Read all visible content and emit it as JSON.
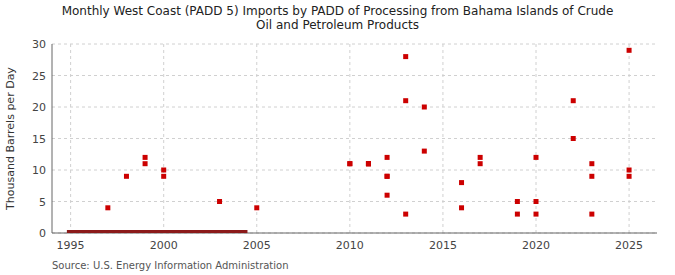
{
  "chart_data": {
    "type": "scatter",
    "title": "Monthly West Coast (PADD 5) Imports by PADD of Processing from Bahama Islands of Crude\nOil and Petroleum Products",
    "ylabel": "Thousand Barrels per Day",
    "source": "Source: U.S. Energy Information Administration",
    "xlim": [
      1994,
      2026.5
    ],
    "ylim": [
      0,
      30
    ],
    "xticks": [
      1995,
      2000,
      2005,
      2010,
      2015,
      2020,
      2025
    ],
    "yticks": [
      0,
      5,
      10,
      15,
      20,
      25,
      30
    ],
    "grid": true,
    "series": [
      {
        "type": "scatter",
        "color": "#cc0000",
        "marker": "square",
        "x": [
          1997,
          1998,
          1999,
          1999,
          2000,
          2000,
          2003,
          2005,
          2010,
          2010,
          2011,
          2011,
          2011,
          2011,
          2012,
          2012,
          2012,
          2012,
          2013,
          2013,
          2013,
          2014,
          2014,
          2016,
          2016,
          2017,
          2017,
          2019,
          2019,
          2020,
          2020,
          2020,
          2022,
          2022,
          2023,
          2023,
          2023,
          2025,
          2025,
          2025
        ],
        "values": [
          4,
          9,
          11,
          12,
          10,
          9,
          5,
          4,
          11,
          11,
          11,
          11,
          11,
          11,
          9,
          9,
          6,
          12,
          28,
          21,
          3,
          20,
          13,
          8,
          4,
          12,
          11,
          3,
          5,
          12,
          5,
          3,
          21,
          15,
          11,
          9,
          3,
          29,
          10,
          9
        ]
      },
      {
        "type": "line",
        "color": "#8b1a1a",
        "x": [
          1994.8,
          2004.5
        ],
        "values": [
          0,
          0
        ]
      }
    ]
  }
}
